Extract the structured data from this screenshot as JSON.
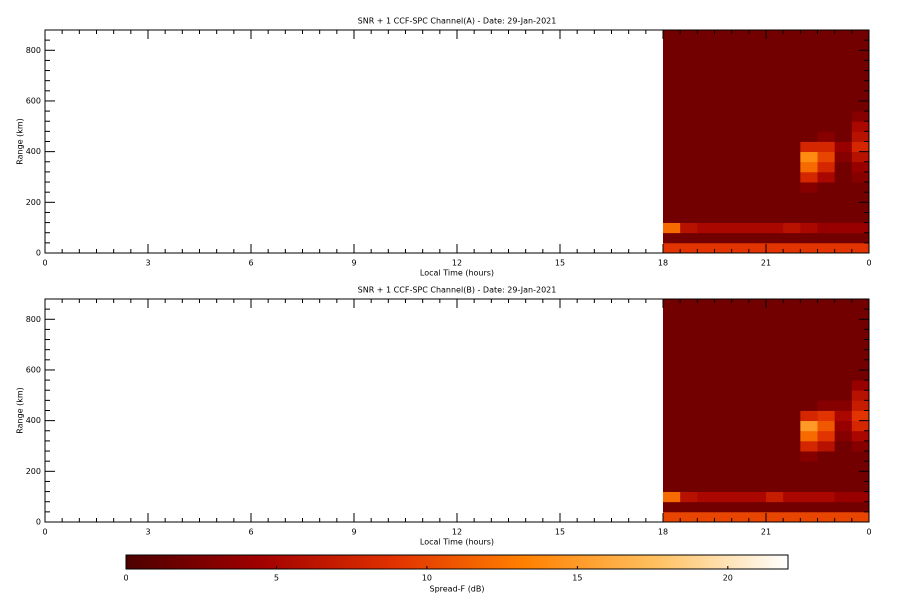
{
  "chart_data": [
    {
      "type": "heatmap",
      "title": "SNR + 1 CCF-SPC Channel(A) - Date: 29-Jan-2021",
      "xlabel": "Local Time (hours)",
      "ylabel": "Range (km)",
      "xlim": [
        0,
        24
      ],
      "xticks": [
        0,
        3,
        6,
        9,
        12,
        15,
        18,
        21,
        {
          "value": 24,
          "label": "0"
        }
      ],
      "x_minor": 6,
      "ylim": [
        0,
        880
      ],
      "yticks": [
        0,
        200,
        400,
        600,
        800
      ],
      "y_minor": 5,
      "x_bins": [
        18,
        18.5,
        19,
        19.5,
        20,
        20.5,
        21,
        21.5,
        22,
        22.5,
        23,
        23.5,
        24
      ],
      "y_bins": [
        0,
        40,
        80,
        120,
        160,
        200,
        240,
        280,
        320,
        360,
        400,
        440,
        480,
        520,
        560,
        600,
        640,
        680,
        720,
        760,
        800,
        840,
        880
      ],
      "z": [
        [
          9,
          9,
          9,
          9,
          9,
          9,
          9,
          9,
          9,
          9,
          9,
          9
        ],
        [
          2,
          2,
          2,
          2,
          2,
          2,
          2,
          2,
          2,
          2,
          2,
          2
        ],
        [
          12,
          6,
          5,
          5,
          5,
          5,
          5,
          6,
          5,
          4,
          4,
          4
        ],
        [
          2,
          2,
          2,
          2,
          2,
          2,
          2,
          2,
          2,
          2,
          2,
          2
        ],
        [
          2,
          2,
          2,
          2,
          2,
          2,
          2,
          2,
          2,
          2,
          2,
          2
        ],
        [
          2,
          2,
          2,
          2,
          2,
          2,
          2,
          2,
          2,
          2,
          2,
          2
        ],
        [
          2,
          2,
          2,
          2,
          2,
          2,
          2,
          2,
          3,
          2,
          2,
          2
        ],
        [
          2,
          2,
          2,
          2,
          2,
          2,
          2,
          2,
          8,
          5,
          2,
          3
        ],
        [
          2,
          2,
          2,
          2,
          2,
          2,
          2,
          2,
          12,
          8,
          2,
          4
        ],
        [
          2,
          2,
          2,
          2,
          2,
          2,
          2,
          2,
          14,
          10,
          3,
          6
        ],
        [
          2,
          2,
          2,
          2,
          2,
          2,
          2,
          2,
          8,
          8,
          4,
          8
        ],
        [
          2,
          2,
          2,
          2,
          2,
          2,
          2,
          2,
          2,
          3,
          2,
          6
        ],
        [
          2,
          2,
          2,
          2,
          2,
          2,
          2,
          2,
          2,
          2,
          2,
          5
        ],
        [
          2,
          2,
          2,
          2,
          2,
          2,
          2,
          2,
          2,
          2,
          2,
          3
        ],
        [
          2,
          2,
          2,
          2,
          2,
          2,
          2,
          2,
          2,
          2,
          2,
          2
        ],
        [
          2,
          2,
          2,
          2,
          2,
          2,
          2,
          2,
          2,
          2,
          2,
          2
        ],
        [
          2,
          2,
          2,
          2,
          2,
          2,
          2,
          2,
          2,
          2,
          2,
          2
        ],
        [
          2,
          2,
          2,
          2,
          2,
          2,
          2,
          2,
          2,
          2,
          2,
          2
        ],
        [
          2,
          2,
          2,
          2,
          2,
          2,
          2,
          2,
          2,
          2,
          2,
          2
        ],
        [
          2,
          2,
          2,
          2,
          2,
          2,
          2,
          2,
          2,
          2,
          2,
          2
        ],
        [
          2,
          2,
          2,
          2,
          2,
          2,
          2,
          2,
          2,
          2,
          2,
          2
        ],
        [
          2,
          2,
          2,
          2,
          2,
          2,
          2,
          2,
          2,
          2,
          2,
          2
        ]
      ]
    },
    {
      "type": "heatmap",
      "title": "SNR + 1 CCF-SPC Channel(B) - Date: 29-Jan-2021",
      "xlabel": "Local Time (hours)",
      "ylabel": "Range (km)",
      "xlim": [
        0,
        24
      ],
      "xticks": [
        0,
        3,
        6,
        9,
        12,
        15,
        18,
        21,
        {
          "value": 24,
          "label": "0"
        }
      ],
      "x_minor": 6,
      "ylim": [
        0,
        880
      ],
      "yticks": [
        0,
        200,
        400,
        600,
        800
      ],
      "y_minor": 5,
      "x_bins": [
        18,
        18.5,
        19,
        19.5,
        20,
        20.5,
        21,
        21.5,
        22,
        22.5,
        23,
        23.5,
        24
      ],
      "y_bins": [
        0,
        40,
        80,
        120,
        160,
        200,
        240,
        280,
        320,
        360,
        400,
        440,
        480,
        520,
        560,
        600,
        640,
        680,
        720,
        760,
        800,
        840,
        880
      ],
      "z": [
        [
          10,
          10,
          10,
          10,
          10,
          10,
          10,
          10,
          10,
          10,
          10,
          10
        ],
        [
          2,
          2,
          2,
          2,
          2,
          2,
          2,
          2,
          2,
          2,
          2,
          2
        ],
        [
          12,
          6,
          5,
          5,
          5,
          5,
          7,
          5,
          5,
          5,
          4,
          4
        ],
        [
          2,
          2,
          2,
          2,
          2,
          2,
          2,
          2,
          2,
          2,
          2,
          2
        ],
        [
          2,
          2,
          2,
          2,
          2,
          2,
          2,
          2,
          2,
          2,
          2,
          2
        ],
        [
          2,
          2,
          2,
          2,
          2,
          2,
          2,
          2,
          2,
          2,
          2,
          2
        ],
        [
          2,
          2,
          2,
          2,
          2,
          2,
          2,
          2,
          3,
          2,
          2,
          2
        ],
        [
          2,
          2,
          2,
          2,
          2,
          2,
          2,
          2,
          8,
          6,
          2,
          3
        ],
        [
          2,
          2,
          2,
          2,
          2,
          2,
          2,
          2,
          12,
          9,
          3,
          5
        ],
        [
          2,
          2,
          2,
          2,
          2,
          2,
          2,
          2,
          15,
          11,
          4,
          8
        ],
        [
          2,
          2,
          2,
          2,
          2,
          2,
          2,
          2,
          8,
          9,
          5,
          9
        ],
        [
          2,
          2,
          2,
          2,
          2,
          2,
          2,
          2,
          2,
          3,
          3,
          7
        ],
        [
          2,
          2,
          2,
          2,
          2,
          2,
          2,
          2,
          2,
          2,
          2,
          6
        ],
        [
          2,
          2,
          2,
          2,
          2,
          2,
          2,
          2,
          2,
          2,
          2,
          4
        ],
        [
          2,
          2,
          2,
          2,
          2,
          2,
          2,
          2,
          2,
          2,
          2,
          2
        ],
        [
          2,
          2,
          2,
          2,
          2,
          2,
          2,
          2,
          2,
          2,
          2,
          2
        ],
        [
          2,
          2,
          2,
          2,
          2,
          2,
          2,
          2,
          2,
          2,
          2,
          2
        ],
        [
          2,
          2,
          2,
          2,
          2,
          2,
          2,
          2,
          2,
          2,
          2,
          2
        ],
        [
          2,
          2,
          2,
          2,
          2,
          2,
          2,
          2,
          2,
          2,
          2,
          2
        ],
        [
          2,
          2,
          2,
          2,
          2,
          2,
          2,
          2,
          2,
          2,
          2,
          2
        ],
        [
          2,
          2,
          2,
          2,
          2,
          2,
          2,
          2,
          2,
          2,
          2,
          2
        ],
        [
          2,
          2,
          2,
          2,
          2,
          2,
          2,
          2,
          2,
          2,
          2,
          2
        ]
      ]
    }
  ],
  "colorbar": {
    "label": "Spread-F (dB)",
    "lim": [
      0,
      22
    ],
    "ticks": [
      0,
      5,
      10,
      15,
      20
    ],
    "colors": [
      "#4d0000",
      "#a00000",
      "#e03000",
      "#ff8000",
      "#ffc060",
      "#ffffff"
    ]
  }
}
